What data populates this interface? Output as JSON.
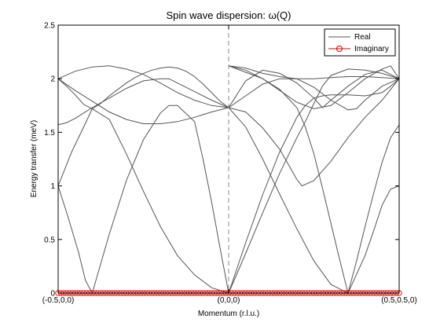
{
  "chart_data": {
    "type": "line",
    "title": "Spin wave dispersion: ω(Q)",
    "xlabel": "Momentum (r.l.u.)",
    "ylabel": "Energy transfer (meV)",
    "xlim": [
      0,
      2
    ],
    "ylim": [
      0,
      2.5
    ],
    "yticks": [
      "0",
      "0.5",
      "1",
      "1.5",
      "2",
      "2.5"
    ],
    "xticks": [
      {
        "x": 0,
        "label": "(-0.5,0,0)"
      },
      {
        "x": 1,
        "label": "(0,0,0)"
      },
      {
        "x": 2,
        "label": "(0.5,0.5,0)"
      }
    ],
    "vertical_marker_x": 1,
    "grid": false,
    "legend": {
      "placement": "top-right",
      "entries": [
        "Real",
        "Imaginary"
      ]
    },
    "colors": {
      "real": "#555555",
      "imaginary": "#d40000",
      "marker_line": "#888888"
    },
    "series": [
      {
        "name": "Real",
        "role": "real",
        "values": [
          [
            0,
            2.0
          ],
          [
            0.05,
            1.93
          ],
          [
            0.1,
            1.85
          ],
          [
            0.15,
            1.76
          ],
          [
            0.2,
            1.72
          ],
          [
            0.25,
            1.77
          ],
          [
            0.3,
            1.84
          ],
          [
            0.35,
            1.9
          ],
          [
            0.4,
            1.96
          ],
          [
            0.45,
            2.01
          ],
          [
            0.5,
            2.05
          ],
          [
            0.55,
            2.08
          ],
          [
            0.6,
            2.1
          ],
          [
            0.65,
            2.11
          ],
          [
            0.7,
            2.1
          ],
          [
            0.75,
            2.07
          ],
          [
            0.8,
            2.02
          ],
          [
            0.85,
            1.95
          ],
          [
            0.9,
            1.87
          ],
          [
            0.95,
            1.79
          ],
          [
            1.0,
            1.73
          ]
        ]
      },
      {
        "name": "Real",
        "role": "real",
        "values": [
          [
            0,
            2.0
          ],
          [
            0.1,
            2.07
          ],
          [
            0.2,
            2.11
          ],
          [
            0.3,
            2.12
          ],
          [
            0.4,
            2.09
          ],
          [
            0.5,
            2.04
          ],
          [
            0.6,
            1.96
          ],
          [
            0.7,
            1.87
          ],
          [
            0.8,
            1.8
          ],
          [
            0.9,
            1.75
          ],
          [
            1.0,
            1.73
          ]
        ]
      },
      {
        "name": "Real",
        "role": "real",
        "values": [
          [
            0,
            1.57
          ],
          [
            0.05,
            1.59
          ],
          [
            0.1,
            1.63
          ],
          [
            0.15,
            1.68
          ],
          [
            0.2,
            1.73
          ],
          [
            0.3,
            1.82
          ],
          [
            0.4,
            1.91
          ],
          [
            0.5,
            1.98
          ],
          [
            0.6,
            2.0
          ],
          [
            0.65,
            2.0
          ],
          [
            0.7,
            1.96
          ],
          [
            0.8,
            1.88
          ],
          [
            0.9,
            1.8
          ],
          [
            1.0,
            1.73
          ]
        ]
      },
      {
        "name": "Real",
        "role": "real",
        "values": [
          [
            0,
            2.0
          ],
          [
            0.1,
            1.89
          ],
          [
            0.2,
            1.79
          ],
          [
            0.3,
            1.69
          ],
          [
            0.4,
            1.62
          ],
          [
            0.5,
            1.58
          ],
          [
            0.6,
            1.58
          ],
          [
            0.7,
            1.6
          ],
          [
            0.8,
            1.64
          ],
          [
            0.9,
            1.69
          ],
          [
            1.0,
            1.73
          ]
        ]
      },
      {
        "name": "Real",
        "role": "real",
        "values": [
          [
            0,
            1.0
          ],
          [
            0.06,
            0.7
          ],
          [
            0.12,
            0.38
          ],
          [
            0.16,
            0.12
          ],
          [
            0.2,
            0.0
          ],
          [
            0.3,
            0.55
          ],
          [
            0.4,
            1.05
          ],
          [
            0.5,
            1.43
          ],
          [
            0.6,
            1.68
          ],
          [
            0.65,
            1.75
          ],
          [
            0.7,
            1.75
          ],
          [
            0.8,
            1.6
          ],
          [
            0.85,
            1.25
          ],
          [
            0.9,
            0.85
          ],
          [
            0.95,
            0.42
          ],
          [
            1.0,
            0.0
          ]
        ]
      },
      {
        "name": "Real",
        "role": "real",
        "values": [
          [
            0,
            1.0
          ],
          [
            0.08,
            1.32
          ],
          [
            0.15,
            1.55
          ],
          [
            0.2,
            1.72
          ],
          [
            0.3,
            1.62
          ],
          [
            0.4,
            1.3
          ],
          [
            0.5,
            0.95
          ],
          [
            0.6,
            0.62
          ],
          [
            0.7,
            0.35
          ],
          [
            0.8,
            0.17
          ],
          [
            0.9,
            0.05
          ],
          [
            1.0,
            0.0
          ]
        ]
      },
      {
        "name": "Real",
        "role": "real",
        "values": [
          [
            1.0,
            0.0
          ],
          [
            1.1,
            0.47
          ],
          [
            1.2,
            0.92
          ],
          [
            1.3,
            1.32
          ],
          [
            1.4,
            1.64
          ],
          [
            1.45,
            1.75
          ],
          [
            1.5,
            1.82
          ],
          [
            1.55,
            1.84
          ],
          [
            1.6,
            1.85
          ],
          [
            1.7,
            1.85
          ],
          [
            1.8,
            1.84
          ],
          [
            1.9,
            1.87
          ],
          [
            1.95,
            1.93
          ],
          [
            2.0,
            2.0
          ]
        ]
      },
      {
        "name": "Real",
        "role": "real",
        "values": [
          [
            1.0,
            0.0
          ],
          [
            1.1,
            0.37
          ],
          [
            1.2,
            0.75
          ],
          [
            1.3,
            1.12
          ],
          [
            1.4,
            1.45
          ],
          [
            1.45,
            1.6
          ],
          [
            1.5,
            1.77
          ],
          [
            1.55,
            1.93
          ],
          [
            1.6,
            2.03
          ],
          [
            1.7,
            2.09
          ],
          [
            1.8,
            2.08
          ],
          [
            1.9,
            2.05
          ],
          [
            2.0,
            2.0
          ]
        ]
      },
      {
        "name": "Real",
        "role": "real",
        "values": [
          [
            1.0,
            1.73
          ],
          [
            1.1,
            1.69
          ],
          [
            1.2,
            1.54
          ],
          [
            1.3,
            1.34
          ],
          [
            1.35,
            1.2
          ],
          [
            1.4,
            1.06
          ],
          [
            1.43,
            1.0
          ],
          [
            1.5,
            1.05
          ],
          [
            1.6,
            1.23
          ],
          [
            1.7,
            1.45
          ],
          [
            1.8,
            1.64
          ],
          [
            1.85,
            1.72
          ],
          [
            1.9,
            1.8
          ],
          [
            2.0,
            2.0
          ]
        ]
      },
      {
        "name": "Real",
        "role": "real",
        "values": [
          [
            1.0,
            1.73
          ],
          [
            1.1,
            1.84
          ],
          [
            1.2,
            1.95
          ],
          [
            1.3,
            2.0
          ],
          [
            1.4,
            2.0
          ],
          [
            1.5,
            1.92
          ],
          [
            1.6,
            1.8
          ],
          [
            1.7,
            1.71
          ],
          [
            1.75,
            1.72
          ],
          [
            1.8,
            1.8
          ],
          [
            1.9,
            1.93
          ],
          [
            2.0,
            2.0
          ]
        ]
      },
      {
        "name": "Real",
        "role": "real",
        "values": [
          [
            1.0,
            1.73
          ],
          [
            1.1,
            1.98
          ],
          [
            1.2,
            2.08
          ],
          [
            1.3,
            2.05
          ],
          [
            1.4,
            1.96
          ],
          [
            1.5,
            1.82
          ],
          [
            1.55,
            1.73
          ],
          [
            1.6,
            1.8
          ],
          [
            1.7,
            1.93
          ],
          [
            1.8,
            2.04
          ],
          [
            1.9,
            2.08
          ],
          [
            2.0,
            2.0
          ]
        ]
      },
      {
        "name": "Real",
        "role": "real",
        "values": [
          [
            1.0,
            2.12
          ],
          [
            1.1,
            2.1
          ],
          [
            1.2,
            2.05
          ],
          [
            1.3,
            2.02
          ],
          [
            1.4,
            2.0
          ],
          [
            1.5,
            2.0
          ],
          [
            1.6,
            2.01
          ],
          [
            1.7,
            2.02
          ],
          [
            1.8,
            2.02
          ],
          [
            1.9,
            2.01
          ],
          [
            2.0,
            2.0
          ]
        ]
      },
      {
        "name": "Real",
        "role": "real",
        "values": [
          [
            1.0,
            2.12
          ],
          [
            1.1,
            2.08
          ],
          [
            1.2,
            2.0
          ],
          [
            1.3,
            1.89
          ],
          [
            1.4,
            1.78
          ],
          [
            1.5,
            1.72
          ],
          [
            1.6,
            1.75
          ],
          [
            1.7,
            1.87
          ],
          [
            1.8,
            2.0
          ],
          [
            1.9,
            2.09
          ],
          [
            1.95,
            2.12
          ],
          [
            2.0,
            2.0
          ]
        ]
      },
      {
        "name": "Real",
        "role": "real",
        "values": [
          [
            1.0,
            2.12
          ],
          [
            1.1,
            2.06
          ],
          [
            1.2,
            2.0
          ],
          [
            1.3,
            1.9
          ],
          [
            1.4,
            1.73
          ],
          [
            1.45,
            1.55
          ],
          [
            1.5,
            1.3
          ],
          [
            1.55,
            0.98
          ],
          [
            1.6,
            0.65
          ],
          [
            1.65,
            0.32
          ],
          [
            1.7,
            0.0
          ],
          [
            1.75,
            0.3
          ],
          [
            1.8,
            0.62
          ],
          [
            1.85,
            0.93
          ],
          [
            1.9,
            1.22
          ],
          [
            1.95,
            1.45
          ],
          [
            2.0,
            1.57
          ]
        ]
      },
      {
        "name": "Real",
        "role": "real",
        "values": [
          [
            1.0,
            1.73
          ],
          [
            1.1,
            1.55
          ],
          [
            1.2,
            1.25
          ],
          [
            1.3,
            0.92
          ],
          [
            1.4,
            0.6
          ],
          [
            1.5,
            0.3
          ],
          [
            1.6,
            0.08
          ],
          [
            1.7,
            0.0
          ],
          [
            1.8,
            0.35
          ],
          [
            1.85,
            0.58
          ],
          [
            1.9,
            0.82
          ],
          [
            1.95,
            0.97
          ],
          [
            2.0,
            1.0
          ]
        ]
      }
    ],
    "imaginary": {
      "name": "Imaginary",
      "x_start": 0,
      "x_end": 2,
      "count": 121,
      "y": 0
    }
  }
}
